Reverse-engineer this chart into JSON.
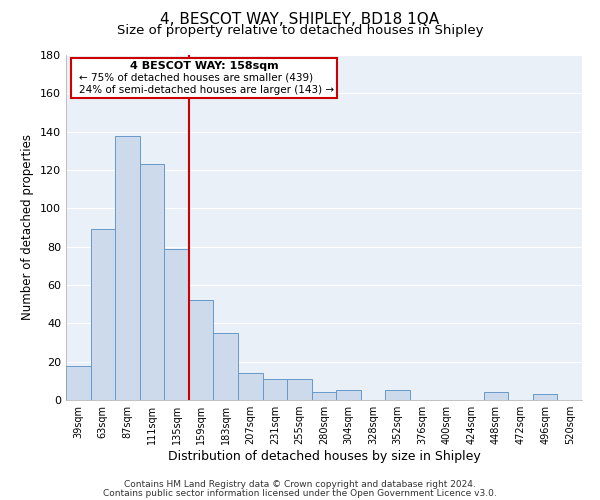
{
  "title": "4, BESCOT WAY, SHIPLEY, BD18 1QA",
  "subtitle": "Size of property relative to detached houses in Shipley",
  "xlabel": "Distribution of detached houses by size in Shipley",
  "ylabel": "Number of detached properties",
  "bar_labels": [
    "39sqm",
    "63sqm",
    "87sqm",
    "111sqm",
    "135sqm",
    "159sqm",
    "183sqm",
    "207sqm",
    "231sqm",
    "255sqm",
    "280sqm",
    "304sqm",
    "328sqm",
    "352sqm",
    "376sqm",
    "400sqm",
    "424sqm",
    "448sqm",
    "472sqm",
    "496sqm",
    "520sqm"
  ],
  "bar_values": [
    18,
    89,
    138,
    123,
    79,
    52,
    35,
    14,
    11,
    11,
    4,
    5,
    0,
    5,
    0,
    0,
    0,
    4,
    0,
    3,
    0
  ],
  "bar_color": "#ccdaeb",
  "bar_edge_color": "#6699cc",
  "ylim": [
    0,
    180
  ],
  "yticks": [
    0,
    20,
    40,
    60,
    80,
    100,
    120,
    140,
    160,
    180
  ],
  "vline_x": 4.5,
  "vline_color": "#cc0000",
  "annotation_title": "4 BESCOT WAY: 158sqm",
  "annotation_line1": "← 75% of detached houses are smaller (439)",
  "annotation_line2": "24% of semi-detached houses are larger (143) →",
  "annotation_box_facecolor": "#ffffff",
  "annotation_box_edgecolor": "#cc0000",
  "footer_line1": "Contains HM Land Registry data © Crown copyright and database right 2024.",
  "footer_line2": "Contains public sector information licensed under the Open Government Licence v3.0.",
  "plot_bg_color": "#eaf0f8",
  "fig_bg_color": "#ffffff",
  "grid_color": "#ffffff",
  "title_fontsize": 11,
  "subtitle_fontsize": 9.5,
  "ylabel_fontsize": 8.5,
  "xlabel_fontsize": 9,
  "tick_fontsize": 7,
  "ytick_fontsize": 8,
  "footer_fontsize": 6.5,
  "ann_title_fontsize": 8,
  "ann_text_fontsize": 7.5
}
